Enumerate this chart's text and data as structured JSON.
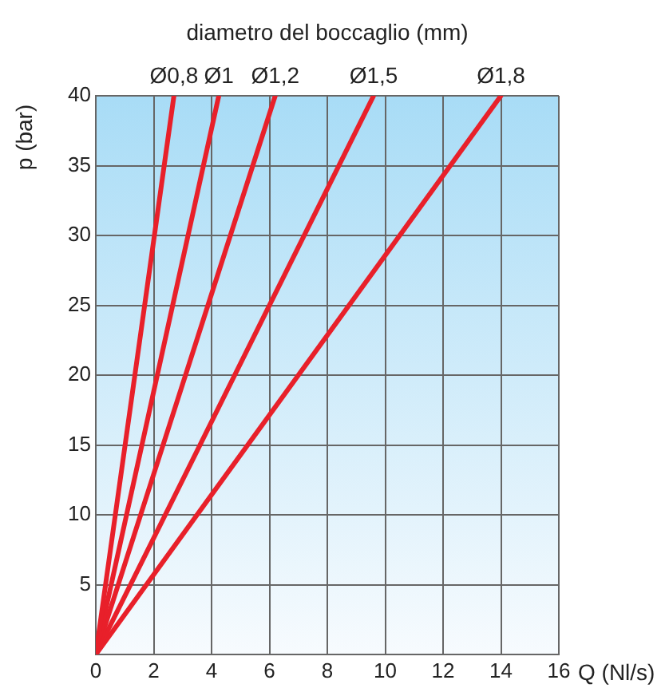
{
  "chart_data": {
    "type": "line",
    "title": "diametro del boccaglio (mm)",
    "xlabel": "Q (Nl/s)",
    "ylabel": "p (bar)",
    "xlim": [
      0,
      16
    ],
    "xticks": [
      0,
      2,
      4,
      6,
      8,
      10,
      12,
      14,
      16
    ],
    "ylim": [
      0,
      40
    ],
    "yticks": [
      {
        "value": 0,
        "label": null
      },
      5,
      10,
      15,
      20,
      25,
      30,
      35,
      40
    ],
    "grid": true,
    "legend": false,
    "marker": "none",
    "line_style": "solid",
    "series": [
      {
        "name": "Ø0,8",
        "color": "#e8202a",
        "x": [
          0,
          2.7
        ],
        "values": [
          0,
          40
        ]
      },
      {
        "name": "Ø1",
        "color": "#e8202a",
        "x": [
          0,
          4.25
        ],
        "values": [
          0,
          40
        ]
      },
      {
        "name": "Ø1,2",
        "color": "#e8202a",
        "x": [
          0,
          6.2
        ],
        "values": [
          0,
          40
        ]
      },
      {
        "name": "Ø1,5",
        "color": "#e8202a",
        "x": [
          0,
          9.6
        ],
        "values": [
          0,
          40
        ]
      },
      {
        "name": "Ø1,8",
        "color": "#e8202a",
        "x": [
          0,
          14
        ],
        "values": [
          0,
          40
        ]
      }
    ]
  }
}
